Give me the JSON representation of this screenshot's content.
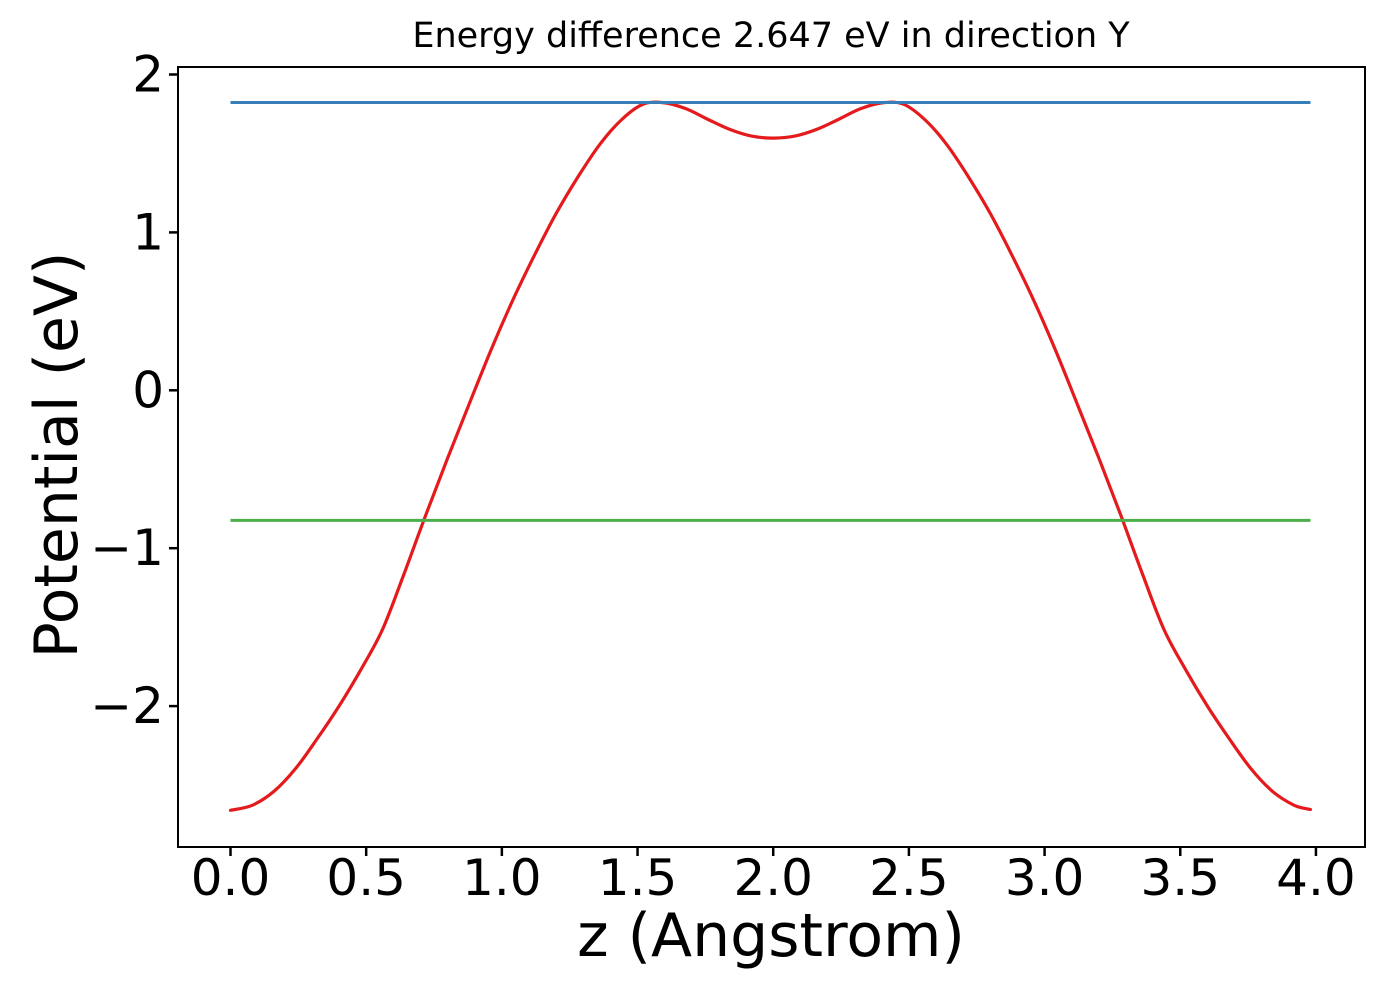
{
  "chart": {
    "title": "Energy difference 2.647 eV in direction Y",
    "xlabel": "z (Angstrom)",
    "ylabel": "Potential (eV)"
  },
  "colors": {
    "potential_curve": "#e41a1c",
    "max_level_line": "#377eb8",
    "min_level_line": "#4daf4a",
    "axes": "#000000",
    "background": "#ffffff"
  },
  "chart_data": {
    "type": "line",
    "title": "Energy difference 2.647 eV in direction Y",
    "xlabel": "z (Angstrom)",
    "ylabel": "Potential (eV)",
    "energy_difference_eV": 2.647,
    "xlim": [
      -0.19,
      4.18
    ],
    "ylim": [
      -2.89,
      2.05
    ],
    "x_ticks": [
      0.0,
      0.5,
      1.0,
      1.5,
      2.0,
      2.5,
      3.0,
      3.5,
      4.0
    ],
    "x_tick_labels": [
      "0.0",
      "0.5",
      "1.0",
      "1.5",
      "2.0",
      "2.5",
      "3.0",
      "3.5",
      "4.0"
    ],
    "y_ticks": [
      2,
      1,
      0,
      -1,
      -2
    ],
    "y_tick_labels": [
      "2",
      "1",
      "0",
      "−1",
      "−2"
    ],
    "grid": false,
    "legend_position": "none",
    "series": [
      {
        "name": "potential-profile",
        "color": "#e41a1c",
        "x": [
          0.0,
          0.08,
          0.16,
          0.24,
          0.32,
          0.4,
          0.48,
          0.56,
          0.64,
          0.72,
          0.8,
          0.88,
          0.96,
          1.04,
          1.12,
          1.2,
          1.28,
          1.36,
          1.44,
          1.52,
          1.6,
          1.68,
          1.76,
          1.84,
          1.92,
          2.0,
          2.08,
          2.16,
          2.24,
          2.32,
          2.4,
          2.48,
          2.56,
          2.64,
          2.72,
          2.8,
          2.88,
          2.96,
          3.04,
          3.12,
          3.2,
          3.28,
          3.36,
          3.44,
          3.52,
          3.6,
          3.68,
          3.76,
          3.84,
          3.92,
          3.98
        ],
        "y": [
          -2.66,
          -2.628,
          -2.54,
          -2.395,
          -2.205,
          -2.0,
          -1.77,
          -1.515,
          -1.16,
          -0.788,
          -0.43,
          -0.085,
          0.255,
          0.57,
          0.855,
          1.12,
          1.35,
          1.555,
          1.712,
          1.812,
          1.82,
          1.782,
          1.715,
          1.652,
          1.61,
          1.597,
          1.61,
          1.652,
          1.715,
          1.782,
          1.82,
          1.812,
          1.712,
          1.555,
          1.35,
          1.12,
          0.855,
          0.57,
          0.255,
          -0.085,
          -0.43,
          -0.788,
          -1.16,
          -1.515,
          -1.77,
          -2.0,
          -2.205,
          -2.395,
          -2.54,
          -2.628,
          -2.655
        ]
      },
      {
        "name": "max-potential-level",
        "color": "#377eb8",
        "style": "horizontal",
        "y_value": 1.823,
        "x_range": [
          0.0,
          3.98
        ]
      },
      {
        "name": "min-potential-level",
        "color": "#4daf4a",
        "style": "horizontal",
        "y_value": -0.824,
        "x_range": [
          0.0,
          3.98
        ]
      }
    ]
  }
}
